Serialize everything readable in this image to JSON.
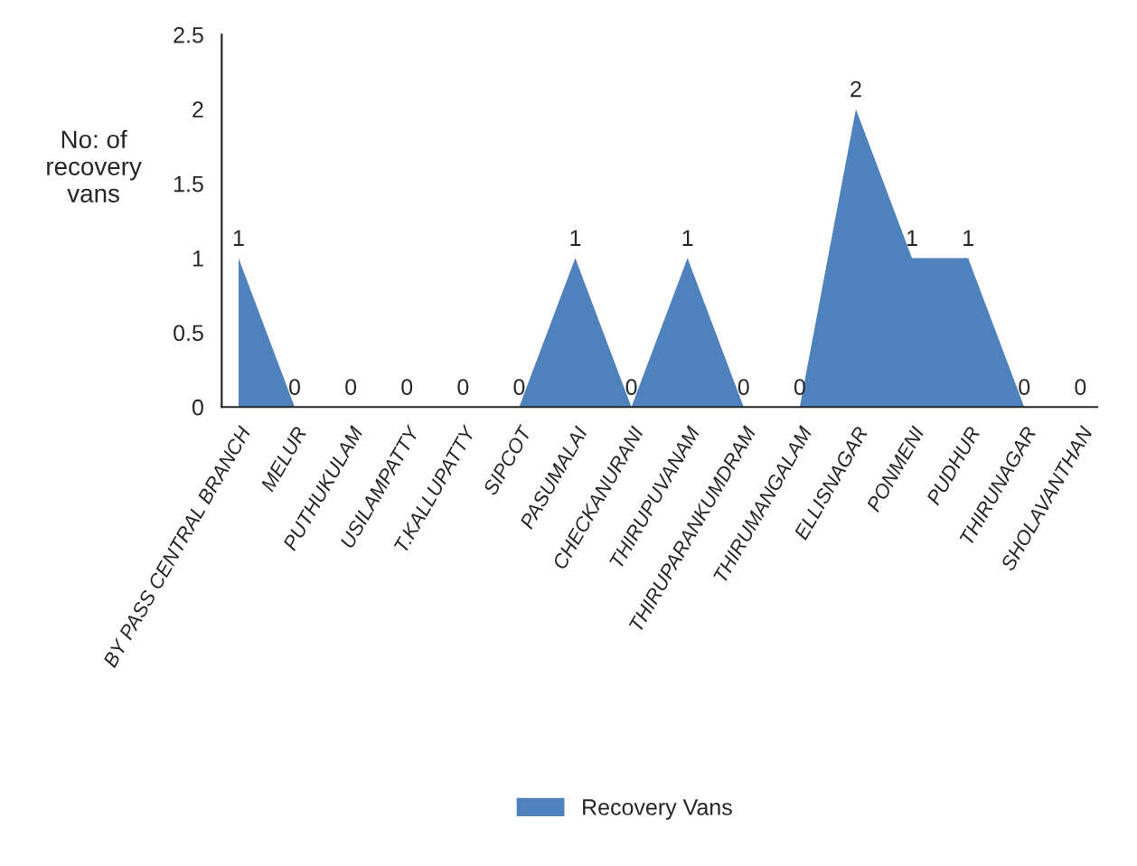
{
  "chart_data": {
    "type": "area",
    "ylabel": "No: of recovery vans",
    "categories": [
      "BY PASS CENTRAL BRANCH",
      "MELUR",
      "PUTHUKULAM",
      "USILAMPATTY",
      "T.KALLUPATTY",
      "SIPCOT",
      "PASUMALAI",
      "CHECKANURANI",
      "THIRUPUVANAM",
      "THIRUPARANKUMDRAM",
      "THIRUMANGALAM",
      "ELLISNAGAR",
      "PONMENI",
      "PUDHUR",
      "THIRUNAGAR",
      "SHOLAVANTHAN"
    ],
    "series": [
      {
        "name": "Recovery Vans",
        "color": "#4f81bd",
        "values": [
          1,
          0,
          0,
          0,
          0,
          0,
          1,
          0,
          1,
          0,
          0,
          2,
          1,
          1,
          0,
          0
        ]
      }
    ],
    "ylim": [
      0,
      2.5
    ],
    "yticks": [
      0,
      0.5,
      1,
      1.5,
      2,
      2.5
    ],
    "data_labels": true,
    "legend": "bottom",
    "grid": false
  }
}
